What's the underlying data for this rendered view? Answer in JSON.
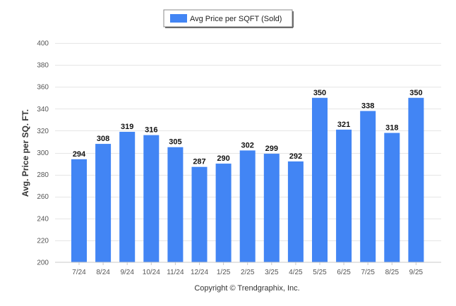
{
  "chart_data": {
    "type": "bar",
    "title": "",
    "xlabel": "",
    "ylabel": "Avg. Price per SQ. FT.",
    "ylim": [
      200,
      400
    ],
    "yticks": [
      200,
      220,
      240,
      260,
      280,
      300,
      320,
      340,
      360,
      380,
      400
    ],
    "grid": true,
    "legend_position": "top-center",
    "categories": [
      "7/24",
      "8/24",
      "9/24",
      "10/24",
      "11/24",
      "12/24",
      "1/25",
      "2/25",
      "3/25",
      "4/25",
      "5/25",
      "6/25",
      "7/25",
      "8/25",
      "9/25"
    ],
    "series": [
      {
        "name": "Avg Price per SQFT (Sold)",
        "color": "#4285f4",
        "values": [
          294,
          308,
          319,
          316,
          305,
          287,
          290,
          302,
          299,
          292,
          350,
          321,
          338,
          318,
          350
        ]
      }
    ]
  },
  "footer": {
    "copyright": "Copyright © Trendgraphix, Inc."
  }
}
